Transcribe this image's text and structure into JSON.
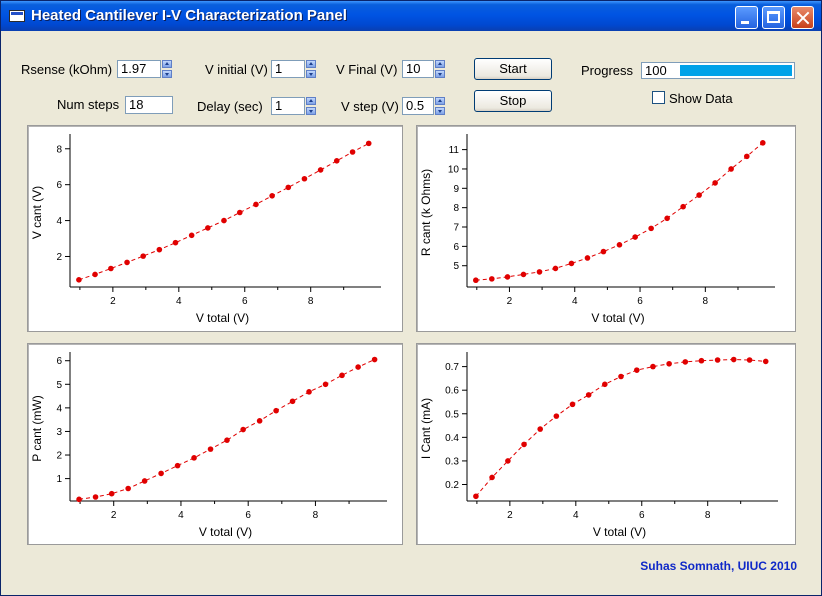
{
  "window": {
    "title": "Heated Cantilever I-V Characterization Panel"
  },
  "controls": {
    "rsense": {
      "label": "Rsense (kOhm)",
      "value": "1.97"
    },
    "v_initial": {
      "label": "V initial (V)",
      "value": "1"
    },
    "v_final": {
      "label": "V Final (V)",
      "value": "10"
    },
    "num_steps": {
      "label": "Num steps",
      "value": "18"
    },
    "delay": {
      "label": "Delay (sec)",
      "value": "1"
    },
    "v_step": {
      "label": "V step (V)",
      "value": "0.5"
    },
    "start_label": "Start",
    "stop_label": "Stop",
    "progress": {
      "label": "Progress",
      "value": "100",
      "fraction": 1.0
    },
    "show_data": {
      "label": "Show Data",
      "checked": false
    }
  },
  "colors": {
    "series": "#e00000",
    "progress_fill": "#00a2e8",
    "footer": "#0f28c8"
  },
  "footer": "Suhas Somnath, UIUC 2010",
  "chart_data": [
    {
      "type": "scatter",
      "xlabel": "V total (V)",
      "ylabel": "V cant (V)",
      "xlim": [
        0.7,
        9.95
      ],
      "ylim": [
        0.3,
        8.6
      ],
      "xticks": [
        2,
        4,
        6,
        8
      ],
      "yticks": [
        2,
        4,
        6,
        8
      ],
      "x": [
        0.97,
        1.46,
        1.94,
        2.43,
        2.92,
        3.41,
        3.9,
        4.39,
        4.88,
        5.37,
        5.85,
        6.34,
        6.83,
        7.32,
        7.81,
        8.3,
        8.79,
        9.27,
        9.76
      ],
      "y": [
        0.7,
        1.0,
        1.33,
        1.67,
        2.02,
        2.38,
        2.77,
        3.18,
        3.59,
        4.0,
        4.45,
        4.9,
        5.38,
        5.85,
        6.33,
        6.82,
        7.33,
        7.82,
        8.3
      ]
    },
    {
      "type": "scatter",
      "xlabel": "V total (V)",
      "ylabel": "R cant (k Ohms)",
      "xlim": [
        0.7,
        9.95
      ],
      "ylim": [
        3.9,
        11.6
      ],
      "xticks": [
        2,
        4,
        6,
        8
      ],
      "yticks": [
        5,
        6,
        7,
        8,
        9,
        10,
        11
      ],
      "x": [
        0.97,
        1.46,
        1.94,
        2.43,
        2.92,
        3.41,
        3.9,
        4.39,
        4.88,
        5.37,
        5.85,
        6.34,
        6.83,
        7.32,
        7.81,
        8.3,
        8.79,
        9.27,
        9.76
      ],
      "y": [
        4.25,
        4.32,
        4.42,
        4.55,
        4.68,
        4.86,
        5.12,
        5.4,
        5.73,
        6.08,
        6.48,
        6.93,
        7.45,
        8.05,
        8.65,
        9.28,
        10.0,
        10.65,
        11.35
      ]
    },
    {
      "type": "scatter",
      "xlabel": "V total (V)",
      "ylabel": "P cant (mW)",
      "xlim": [
        0.7,
        9.95
      ],
      "ylim": [
        0.05,
        6.2
      ],
      "xticks": [
        2,
        4,
        6,
        8
      ],
      "yticks": [
        1,
        2,
        3,
        4,
        5,
        6
      ],
      "x": [
        0.97,
        1.46,
        1.94,
        2.43,
        2.92,
        3.41,
        3.9,
        4.39,
        4.88,
        5.37,
        5.85,
        6.34,
        6.83,
        7.32,
        7.81,
        8.3,
        8.79,
        9.27,
        9.76
      ],
      "y": [
        0.12,
        0.22,
        0.36,
        0.58,
        0.9,
        1.22,
        1.55,
        1.88,
        2.25,
        2.63,
        3.08,
        3.45,
        3.88,
        4.28,
        4.68,
        5.0,
        5.38,
        5.73,
        6.05
      ]
    },
    {
      "type": "scatter",
      "xlabel": "V total (V)",
      "ylabel": "I Cant (mA)",
      "xlim": [
        0.7,
        9.95
      ],
      "ylim": [
        0.13,
        0.745
      ],
      "xticks": [
        2,
        4,
        6,
        8
      ],
      "yticks": [
        0.2,
        0.3,
        0.4,
        0.5,
        0.6,
        0.7
      ],
      "x": [
        0.97,
        1.46,
        1.94,
        2.43,
        2.92,
        3.41,
        3.9,
        4.39,
        4.88,
        5.37,
        5.85,
        6.34,
        6.83,
        7.32,
        7.81,
        8.3,
        8.79,
        9.27,
        9.76
      ],
      "y": [
        0.15,
        0.23,
        0.3,
        0.37,
        0.435,
        0.49,
        0.54,
        0.58,
        0.625,
        0.658,
        0.685,
        0.7,
        0.712,
        0.72,
        0.725,
        0.728,
        0.73,
        0.728,
        0.722
      ]
    }
  ]
}
